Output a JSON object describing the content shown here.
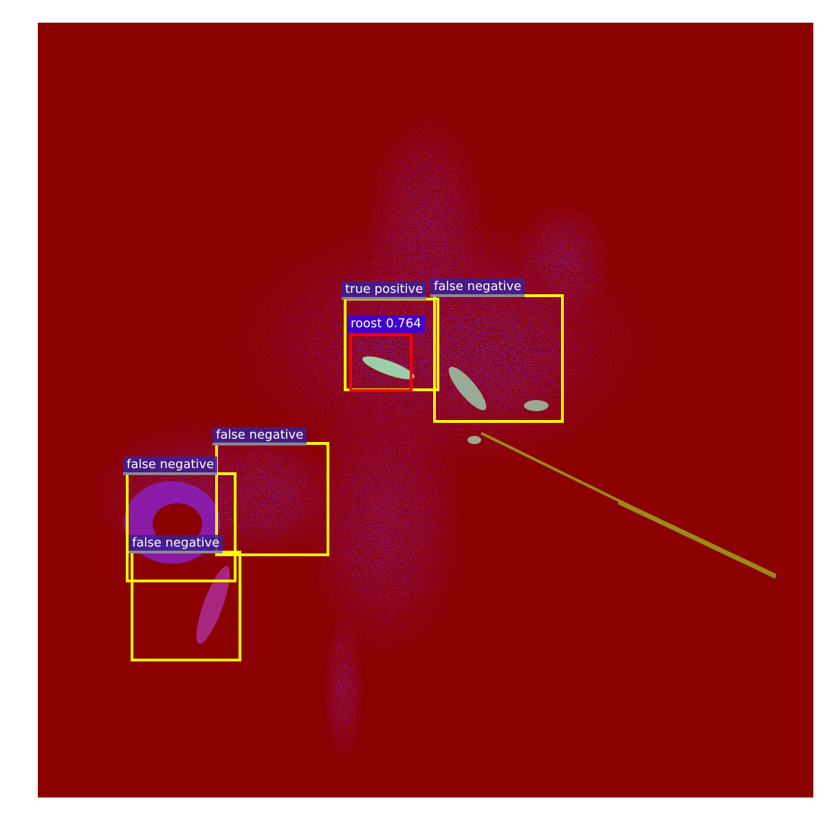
{
  "image": {
    "background_color": "#ffffff",
    "radar_background_color": "#8b0000",
    "echo_colors": [
      "#9a1aa8",
      "#7a20c8",
      "#b02090",
      "#c040d0",
      "#a0ffc0"
    ],
    "streak_color": "#9a8a1a"
  },
  "annotations": {
    "ground_truth_color": "#ffff00",
    "detection_color": "#ff0000",
    "label_bg_color": "#3c1e96",
    "labels": [
      {
        "id": "tp",
        "text": "true positive"
      },
      {
        "id": "fn1",
        "text": "false negative"
      },
      {
        "id": "fn2",
        "text": "false negative"
      },
      {
        "id": "fn3",
        "text": "false negative"
      },
      {
        "id": "fn4",
        "text": "false negative"
      },
      {
        "id": "det",
        "text": "roost 0.764"
      }
    ]
  }
}
